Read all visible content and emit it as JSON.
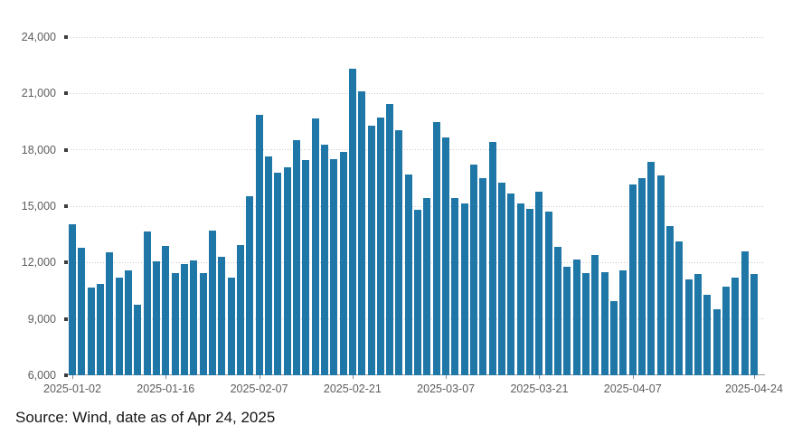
{
  "chart_data": {
    "type": "bar",
    "title": "",
    "xlabel": "",
    "ylabel": "",
    "ylim": [
      6000,
      24000
    ],
    "grid": "horizontal-dotted",
    "legend": "none",
    "bar_color": "#1f77a7",
    "y_tick_values": [
      6000,
      9000,
      12000,
      15000,
      18000,
      21000,
      24000
    ],
    "y_tick_labels": [
      "6,000",
      "9,000",
      "12,000",
      "15,000",
      "18,000",
      "21,000",
      "24,000"
    ],
    "x": [
      "2025-01-02",
      "2025-01-03",
      "2025-01-06",
      "2025-01-07",
      "2025-01-08",
      "2025-01-09",
      "2025-01-10",
      "2025-01-13",
      "2025-01-14",
      "2025-01-15",
      "2025-01-16",
      "2025-01-17",
      "2025-01-20",
      "2025-01-21",
      "2025-01-22",
      "2025-01-23",
      "2025-01-24",
      "2025-01-27",
      "2025-02-05",
      "2025-02-06",
      "2025-02-07",
      "2025-02-10",
      "2025-02-11",
      "2025-02-12",
      "2025-02-13",
      "2025-02-14",
      "2025-02-17",
      "2025-02-18",
      "2025-02-19",
      "2025-02-20",
      "2025-02-21",
      "2025-02-24",
      "2025-02-25",
      "2025-02-26",
      "2025-02-27",
      "2025-02-28",
      "2025-03-03",
      "2025-03-04",
      "2025-03-05",
      "2025-03-06",
      "2025-03-07",
      "2025-03-10",
      "2025-03-11",
      "2025-03-12",
      "2025-03-13",
      "2025-03-14",
      "2025-03-17",
      "2025-03-18",
      "2025-03-19",
      "2025-03-20",
      "2025-03-21",
      "2025-03-24",
      "2025-03-25",
      "2025-03-26",
      "2025-03-27",
      "2025-03-28",
      "2025-03-31",
      "2025-04-01",
      "2025-04-02",
      "2025-04-03",
      "2025-04-07",
      "2025-04-08",
      "2025-04-09",
      "2025-04-10",
      "2025-04-11",
      "2025-04-14",
      "2025-04-15",
      "2025-04-16",
      "2025-04-17",
      "2025-04-18",
      "2025-04-21",
      "2025-04-22",
      "2025-04-23",
      "2025-04-24"
    ],
    "values": [
      14020,
      12770,
      10650,
      10840,
      12530,
      11180,
      11570,
      9740,
      13670,
      12050,
      12870,
      11450,
      11900,
      12130,
      11420,
      13680,
      12320,
      11210,
      12910,
      15520,
      19880,
      17630,
      16800,
      17090,
      18530,
      17470,
      19680,
      18270,
      17490,
      17890,
      22320,
      21120,
      19280,
      19700,
      20420,
      19050,
      16690,
      14800,
      15450,
      19500,
      18640,
      15430,
      15140,
      17220,
      16480,
      18400,
      16240,
      15690,
      15130,
      14860,
      15780,
      14700,
      12860,
      11770,
      12170,
      11420,
      12410,
      11500,
      9930,
      11580,
      16150,
      16500,
      17380,
      16650,
      13930,
      13130,
      11100,
      11370,
      10300,
      9530,
      10730,
      11180,
      12620,
      11370
    ],
    "x_tick_indices": [
      0,
      10,
      20,
      30,
      40,
      50,
      60,
      73
    ],
    "x_tick_labels": [
      "2025-01-02",
      "2025-01-16",
      "2025-02-07",
      "2025-02-21",
      "2025-03-07",
      "2025-03-21",
      "2025-04-07",
      "2025-04-24"
    ]
  },
  "footer": {
    "source_note": "Source: Wind, date as of Apr 24, 2025"
  }
}
